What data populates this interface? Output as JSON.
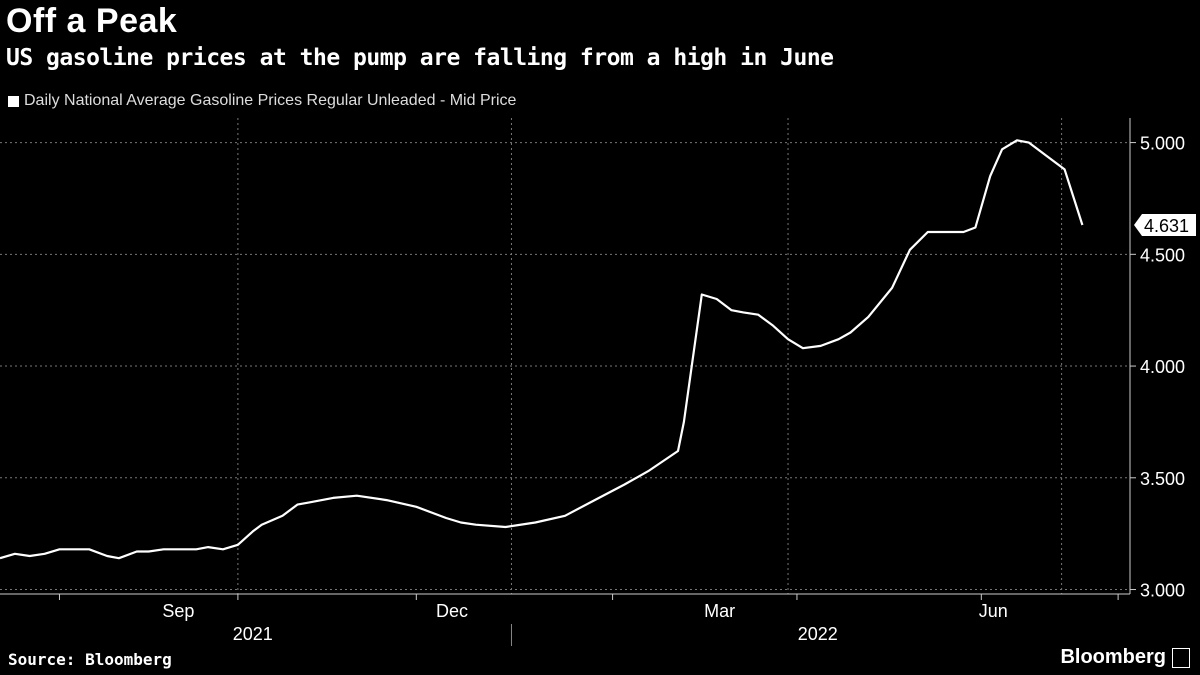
{
  "header": {
    "title": "Off a Peak",
    "subtitle": "US gasoline prices at the pump are falling from a high in June"
  },
  "footer": {
    "source": "Source: Bloomberg",
    "brand": "Bloomberg"
  },
  "colors": {
    "background": "#000000",
    "line": "#ffffff",
    "grid": "#666666"
  },
  "chart_data": {
    "type": "line",
    "title": "Off a Peak",
    "subtitle": "US gasoline prices at the pump are falling from a high in June",
    "legend": [
      "Daily National Average Gasoline Prices Regular Unleaded - Mid Price"
    ],
    "legend_position": "top-left",
    "ylabel": "",
    "xlabel": "",
    "ylim": [
      2.98,
      5.11
    ],
    "y_ticks": [
      3.0,
      3.5,
      4.0,
      4.5,
      5.0
    ],
    "y_tick_labels": [
      "3.000",
      "3.500",
      "4.000",
      "4.500",
      "5.000"
    ],
    "x_range": [
      0,
      380
    ],
    "x_ticks": [
      {
        "x": 60,
        "label": "Sep"
      },
      {
        "x": 152,
        "label": "Dec"
      },
      {
        "x": 242,
        "label": "Mar"
      },
      {
        "x": 334,
        "label": "Jun"
      }
    ],
    "x_minor_ticks": [
      20,
      80,
      140,
      206,
      268,
      330,
      376
    ],
    "x_gridlines": [
      80,
      172,
      265,
      357
    ],
    "year_labels": [
      {
        "x": 85,
        "label": "2021"
      },
      {
        "x": 275,
        "label": "2022"
      }
    ],
    "year_divider_x": 172,
    "last_value_label": "4.631",
    "series": [
      {
        "name": "Daily National Average Gasoline Prices Regular Unleaded - Mid Price",
        "x": [
          0,
          5,
          10,
          15,
          20,
          24,
          30,
          36,
          40,
          46,
          50,
          55,
          60,
          66,
          70,
          75,
          80,
          85,
          88,
          95,
          100,
          104,
          112,
          120,
          130,
          140,
          150,
          155,
          160,
          170,
          180,
          190,
          200,
          210,
          218,
          228,
          230,
          236,
          241,
          246,
          250,
          255,
          260,
          265,
          270,
          276,
          282,
          286,
          292,
          300,
          306,
          312,
          316,
          324,
          328,
          333,
          337,
          342,
          346,
          352,
          358,
          364
        ],
        "values": [
          3.14,
          3.16,
          3.15,
          3.16,
          3.18,
          3.18,
          3.18,
          3.15,
          3.14,
          3.17,
          3.17,
          3.18,
          3.18,
          3.18,
          3.19,
          3.18,
          3.2,
          3.26,
          3.29,
          3.33,
          3.38,
          3.39,
          3.41,
          3.42,
          3.4,
          3.37,
          3.32,
          3.3,
          3.29,
          3.28,
          3.3,
          3.33,
          3.4,
          3.47,
          3.53,
          3.62,
          3.75,
          4.32,
          4.3,
          4.25,
          4.24,
          4.23,
          4.18,
          4.12,
          4.08,
          4.09,
          4.12,
          4.15,
          4.22,
          4.35,
          4.52,
          4.6,
          4.6,
          4.6,
          4.62,
          4.85,
          4.97,
          5.01,
          5.0,
          4.94,
          4.88,
          4.631
        ]
      }
    ]
  }
}
